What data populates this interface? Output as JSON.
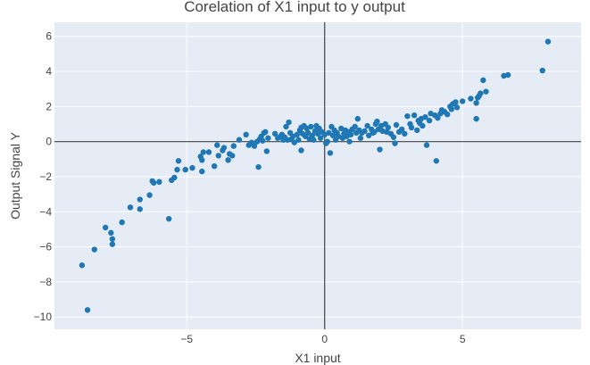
{
  "colors": {
    "plot_bg": "#e5ecf6",
    "grid": "#ffffff",
    "zero_line": "#444444",
    "marker": "#1f77b4",
    "text": "#444444"
  },
  "chart_data": {
    "type": "scatter",
    "title": "Corelation of X1 input to y output",
    "xlabel": "X1 input",
    "ylabel": "Output Signal Y",
    "xlim": [
      -9.8,
      9.3
    ],
    "ylim": [
      -10.7,
      6.8
    ],
    "grid": true,
    "x_ticks": [
      -5,
      0,
      5
    ],
    "x_tick_labels": [
      "−5",
      "0",
      "5"
    ],
    "y_ticks": [
      -10,
      -8,
      -6,
      -4,
      -2,
      0,
      2,
      4,
      6
    ],
    "y_tick_labels": [
      "−10",
      "−8",
      "−6",
      "−4",
      "−2",
      "0",
      "2",
      "4",
      "6"
    ],
    "series": [
      {
        "marker_color": "#1f77b4",
        "points": [
          [
            -8.6,
            -9.6
          ],
          [
            -8.8,
            -7.05
          ],
          [
            -8.35,
            -6.15
          ],
          [
            -7.95,
            -4.9
          ],
          [
            -7.75,
            -5.2
          ],
          [
            -7.7,
            -5.55
          ],
          [
            -7.7,
            -5.85
          ],
          [
            -7.35,
            -4.6
          ],
          [
            -7.05,
            -3.75
          ],
          [
            -6.7,
            -3.85
          ],
          [
            -6.7,
            -3.3
          ],
          [
            -6.35,
            -3.05
          ],
          [
            -6.25,
            -2.25
          ],
          [
            -6.2,
            -2.35
          ],
          [
            -6.0,
            -2.3
          ],
          [
            -5.65,
            -4.4
          ],
          [
            -5.55,
            -2.2
          ],
          [
            -5.45,
            -2.05
          ],
          [
            -5.35,
            -1.6
          ],
          [
            -5.3,
            -1.1
          ],
          [
            -5.05,
            -1.6
          ],
          [
            -4.8,
            -1.5
          ],
          [
            -4.5,
            -0.85
          ],
          [
            -4.45,
            -1.7
          ],
          [
            -4.45,
            -1.05
          ],
          [
            -4.4,
            -0.6
          ],
          [
            -4.2,
            -0.6
          ],
          [
            -4.0,
            -1.4
          ],
          [
            -3.9,
            -0.2
          ],
          [
            -3.85,
            -0.8
          ],
          [
            -3.7,
            -0.5
          ],
          [
            -3.65,
            -0.35
          ],
          [
            -3.5,
            -1.05
          ],
          [
            -3.45,
            -0.7
          ],
          [
            -3.35,
            -0.8
          ],
          [
            -3.3,
            -0.25
          ],
          [
            -3.1,
            0.1
          ],
          [
            -2.85,
            0.4
          ],
          [
            -2.75,
            -0.2
          ],
          [
            -2.65,
            -0.05
          ],
          [
            -2.55,
            -0.25
          ],
          [
            -2.45,
            0.0
          ],
          [
            -2.4,
            -1.45
          ],
          [
            -2.35,
            0.15
          ],
          [
            -2.3,
            0.3
          ],
          [
            -2.25,
            0.05
          ],
          [
            -2.2,
            0.5
          ],
          [
            -2.15,
            0.55
          ],
          [
            -2.1,
            -0.55
          ],
          [
            -2.05,
            0.2
          ],
          [
            -1.8,
            0.45
          ],
          [
            -1.7,
            0.2
          ],
          [
            -1.6,
            0.3
          ],
          [
            -1.55,
            0.4
          ],
          [
            -1.5,
            0.1
          ],
          [
            -1.45,
            0.25
          ],
          [
            -1.4,
            0.85
          ],
          [
            -1.35,
            0.1
          ],
          [
            -1.3,
            1.1
          ],
          [
            -1.25,
            0.5
          ],
          [
            -1.2,
            0.15
          ],
          [
            -1.15,
            0.3
          ],
          [
            -1.1,
            -0.05
          ],
          [
            -1.0,
            0.4
          ],
          [
            -0.95,
            0.1
          ],
          [
            -0.9,
            0.65
          ],
          [
            -0.85,
            0.8
          ],
          [
            -0.85,
            -0.5
          ],
          [
            -0.8,
            0.45
          ],
          [
            -0.75,
            0.9
          ],
          [
            -0.7,
            0.3
          ],
          [
            -0.65,
            0.75
          ],
          [
            -0.6,
            0.5
          ],
          [
            -0.55,
            0.15
          ],
          [
            -0.5,
            0.85
          ],
          [
            -0.45,
            0.35
          ],
          [
            -0.4,
            0.1
          ],
          [
            -0.35,
            0.6
          ],
          [
            -0.3,
            0.9
          ],
          [
            -0.25,
            0.45
          ],
          [
            -0.2,
            0.75
          ],
          [
            -0.15,
            0.2
          ],
          [
            -0.1,
            0.55
          ],
          [
            0.0,
            0.4
          ],
          [
            0.05,
            -0.1
          ],
          [
            0.1,
            0.0
          ],
          [
            0.15,
            0.5
          ],
          [
            0.2,
            -0.65
          ],
          [
            0.25,
            0.85
          ],
          [
            0.3,
            0.35
          ],
          [
            0.35,
            0.65
          ],
          [
            0.4,
            0.1
          ],
          [
            0.45,
            0.5
          ],
          [
            0.5,
            0.3
          ],
          [
            0.6,
            0.75
          ],
          [
            0.65,
            0.2
          ],
          [
            0.7,
            0.45
          ],
          [
            0.75,
            0.65
          ],
          [
            0.8,
            0.3
          ],
          [
            0.85,
            0.55
          ],
          [
            0.9,
            0.0
          ],
          [
            0.95,
            0.4
          ],
          [
            1.0,
            0.7
          ],
          [
            1.1,
            0.85
          ],
          [
            1.15,
            0.5
          ],
          [
            1.2,
            1.3
          ],
          [
            1.25,
            0.65
          ],
          [
            1.3,
            0.2
          ],
          [
            1.35,
            0.5
          ],
          [
            1.45,
            0.6
          ],
          [
            1.55,
            0.9
          ],
          [
            1.6,
            0.35
          ],
          [
            1.7,
            0.7
          ],
          [
            1.75,
            0.5
          ],
          [
            1.8,
            0.55
          ],
          [
            1.85,
            1.0
          ],
          [
            1.9,
            1.15
          ],
          [
            1.95,
            0.7
          ],
          [
            2.0,
            -0.45
          ],
          [
            2.05,
            0.9
          ],
          [
            2.1,
            0.6
          ],
          [
            2.2,
            1.0
          ],
          [
            2.25,
            0.55
          ],
          [
            2.3,
            0.8
          ],
          [
            2.4,
            0.45
          ],
          [
            2.5,
            0.25
          ],
          [
            2.55,
            -0.1
          ],
          [
            2.6,
            0.95
          ],
          [
            2.7,
            0.55
          ],
          [
            2.8,
            0.7
          ],
          [
            2.9,
            0.45
          ],
          [
            3.0,
            1.45
          ],
          [
            3.1,
            1.0
          ],
          [
            3.15,
            0.8
          ],
          [
            3.25,
            1.5
          ],
          [
            3.35,
            0.65
          ],
          [
            3.4,
            1.2
          ],
          [
            3.45,
            1.05
          ],
          [
            3.5,
            1.3
          ],
          [
            3.55,
            0.9
          ],
          [
            3.65,
            1.4
          ],
          [
            3.7,
            -0.2
          ],
          [
            3.8,
            1.2
          ],
          [
            3.85,
            1.6
          ],
          [
            4.0,
            1.5
          ],
          [
            4.05,
            -1.1
          ],
          [
            4.1,
            1.35
          ],
          [
            4.2,
            1.6
          ],
          [
            4.25,
            1.8
          ],
          [
            4.35,
            1.7
          ],
          [
            4.45,
            1.55
          ],
          [
            4.55,
            2.0
          ],
          [
            4.6,
            1.85
          ],
          [
            4.65,
            2.15
          ],
          [
            4.75,
            2.25
          ],
          [
            4.8,
            1.95
          ],
          [
            5.0,
            2.3
          ],
          [
            5.3,
            2.45
          ],
          [
            5.5,
            1.3
          ],
          [
            5.5,
            2.2
          ],
          [
            5.55,
            2.5
          ],
          [
            5.6,
            2.6
          ],
          [
            5.65,
            2.75
          ],
          [
            5.75,
            3.5
          ],
          [
            5.85,
            2.85
          ],
          [
            6.5,
            3.75
          ],
          [
            6.65,
            3.8
          ],
          [
            7.9,
            4.05
          ],
          [
            8.1,
            5.7
          ]
        ]
      }
    ]
  }
}
